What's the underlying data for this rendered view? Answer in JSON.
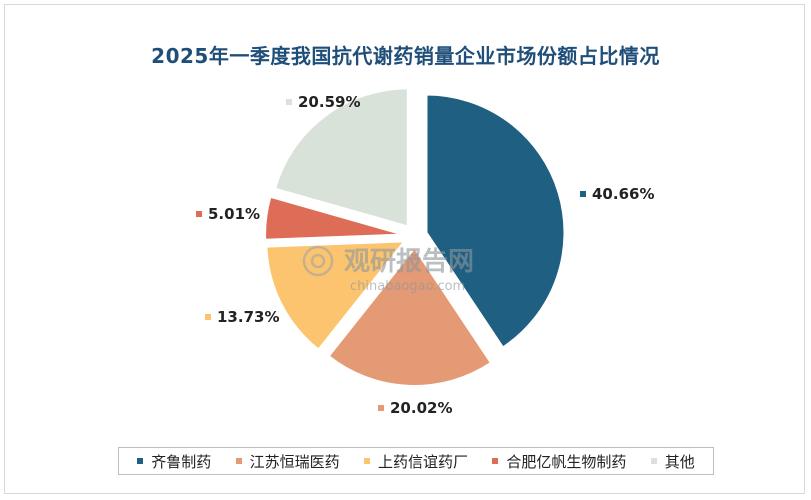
{
  "chart_data": {
    "type": "pie",
    "title": "2025年一季度我国抗代谢药销量企业市场份额占比情况",
    "series": [
      {
        "name": "齐鲁制药",
        "value": 40.66,
        "label": "40.66%",
        "color": "#1f5f82"
      },
      {
        "name": "江苏恒瑞医药",
        "value": 20.02,
        "label": "20.02%",
        "color": "#e39a75"
      },
      {
        "name": "上药信谊药厂",
        "value": 13.73,
        "label": "13.73%",
        "color": "#fcc46e"
      },
      {
        "name": "合肥亿帆生物制药",
        "value": 5.01,
        "label": "5.01%",
        "color": "#dd6d57"
      },
      {
        "name": "其他",
        "value": 20.59,
        "label": "20.59%",
        "color": "#d8e2d9"
      }
    ],
    "legend_position": "bottom"
  },
  "watermark": {
    "main": "观研报告网",
    "sub": "chinabaogao.com"
  }
}
